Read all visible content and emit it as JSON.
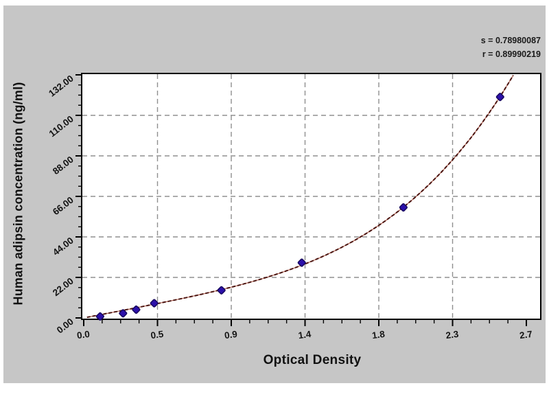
{
  "annotation": {
    "line1": "s = 0.78980087",
    "line2": "r = 0.89990219"
  },
  "chart_data": {
    "type": "scatter",
    "title": "",
    "xlabel": "Optical Density",
    "ylabel": "Human adipsin concentration (ng/ml)",
    "xlim": [
      0,
      2.78
    ],
    "ylim": [
      0,
      132.7
    ],
    "x_major_tick_values": [
      0,
      0.45,
      0.9,
      1.35,
      1.8,
      2.25,
      2.7
    ],
    "x_tick_labels": [
      "0.0",
      "0.5",
      "0.9",
      "1.4",
      "1.8",
      "2.3",
      "2.7"
    ],
    "y_major_tick_values": [
      0,
      22,
      44,
      66,
      88,
      110,
      132
    ],
    "y_tick_labels": [
      "0.00",
      "22.00",
      "44.00",
      "66.00",
      "88.00",
      "110.00",
      "132.00"
    ],
    "minor_divisions_per_major": 4,
    "grid": "dashed gray on major ticks",
    "legend": "none",
    "points": [
      {
        "od": 0.1,
        "conc": 0.8
      },
      {
        "od": 0.24,
        "conc": 2.5
      },
      {
        "od": 0.32,
        "conc": 4.5
      },
      {
        "od": 0.43,
        "conc": 8.0
      },
      {
        "od": 0.84,
        "conc": 15.0
      },
      {
        "od": 1.33,
        "conc": 30.0
      },
      {
        "od": 1.95,
        "conc": 60.0
      },
      {
        "od": 2.54,
        "conc": 120.0
      }
    ],
    "curve_fit": {
      "model": "conc = a*OD + b*OD^4",
      "a": 17.2,
      "b": 1.84
    },
    "colors": {
      "background": "#c6c6c6",
      "plot_bg": "#ffffff",
      "axis": "#000000",
      "grid": "#8f8f8f",
      "curve_dark": "#4a1410",
      "curve_light": "#b06050",
      "marker": "#2c10aa",
      "marker_edge": "#17065e"
    }
  }
}
